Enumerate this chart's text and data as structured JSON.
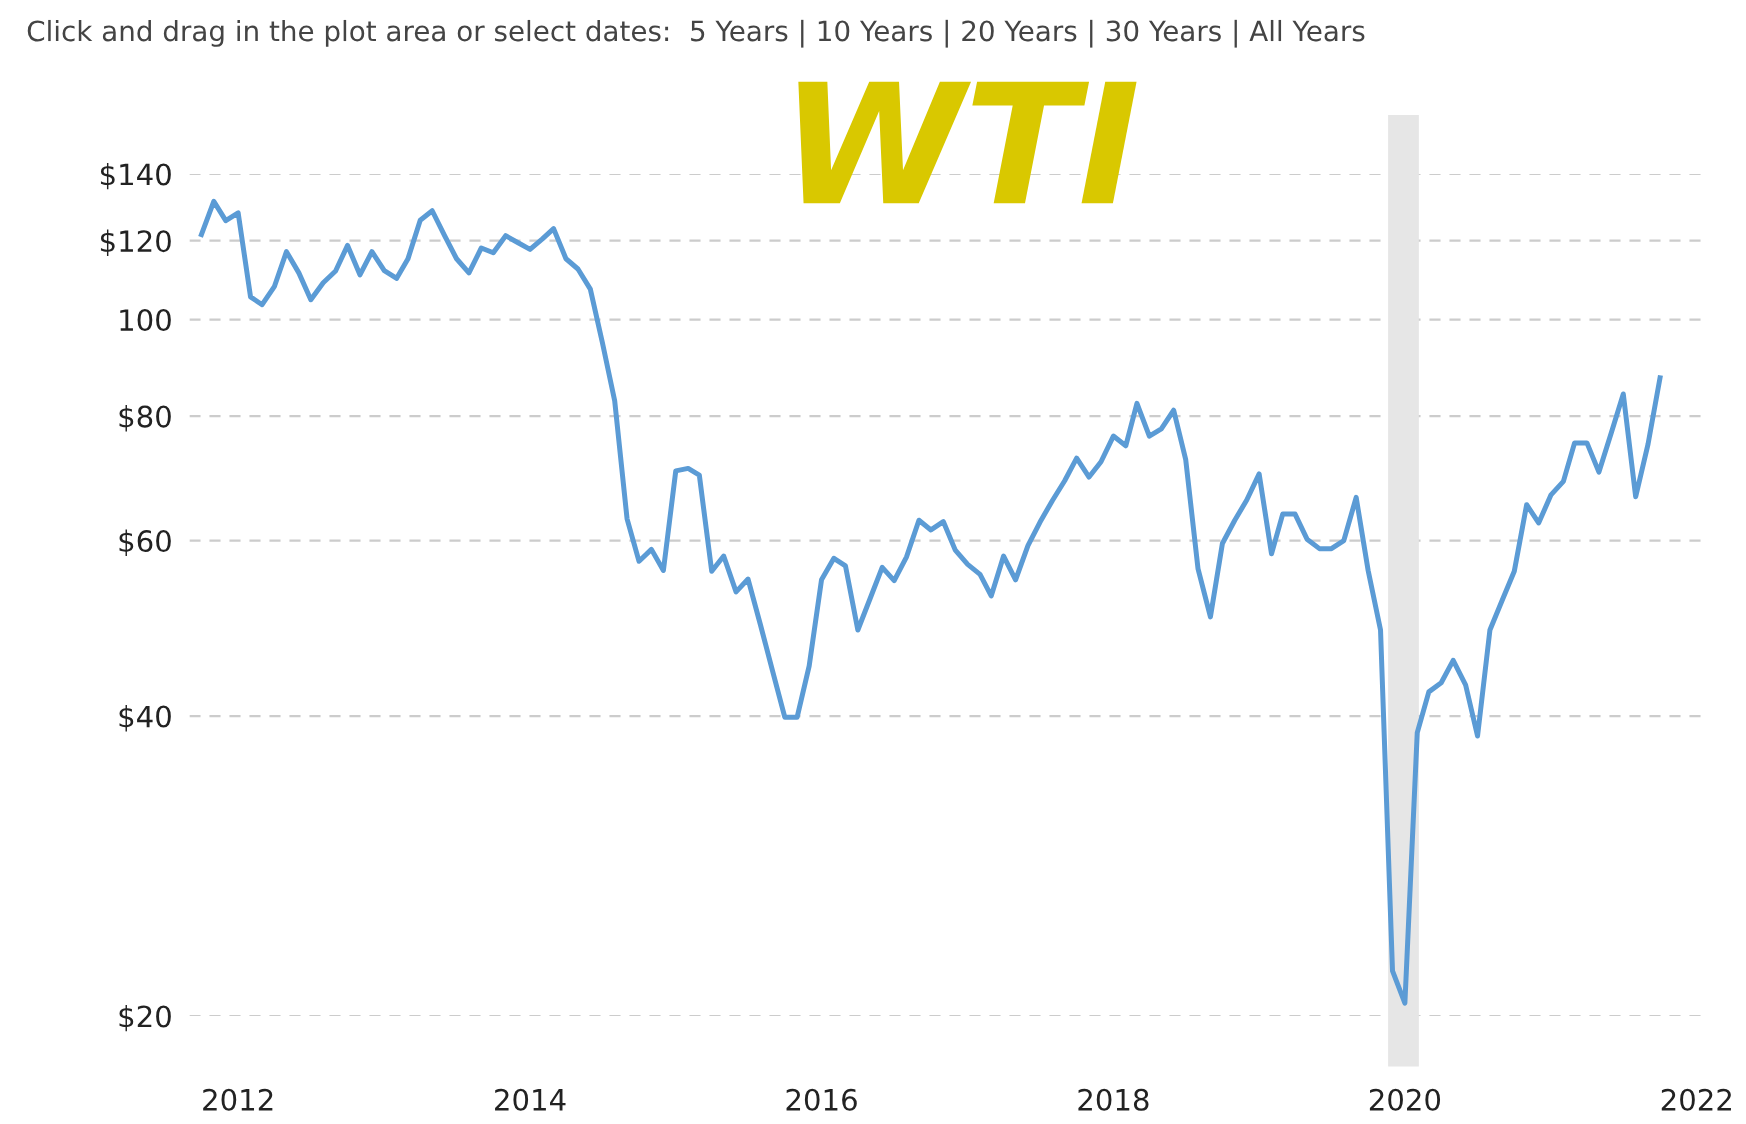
{
  "chart_data": {
    "type": "line",
    "annotations": [
      "Click and drag in the plot area or select dates:  5 Years | 10 Years | 20 Years | 30 Years | All Years",
      "WTI"
    ],
    "x": [
      "2011-10",
      "2011-11",
      "2011-12",
      "2012-01",
      "2012-02",
      "2012-03",
      "2012-04",
      "2012-05",
      "2012-06",
      "2012-07",
      "2012-08",
      "2012-09",
      "2012-10",
      "2012-11",
      "2012-12",
      "2013-01",
      "2013-02",
      "2013-03",
      "2013-04",
      "2013-05",
      "2013-06",
      "2013-07",
      "2013-08",
      "2013-09",
      "2013-10",
      "2013-11",
      "2013-12",
      "2014-01",
      "2014-02",
      "2014-03",
      "2014-04",
      "2014-05",
      "2014-06",
      "2014-07",
      "2014-08",
      "2014-09",
      "2014-10",
      "2014-11",
      "2014-12",
      "2015-01",
      "2015-02",
      "2015-03",
      "2015-04",
      "2015-05",
      "2015-06",
      "2015-07",
      "2015-08",
      "2015-09",
      "2015-10",
      "2015-11",
      "2015-12",
      "2016-01",
      "2016-02",
      "2016-03",
      "2016-04",
      "2016-05",
      "2016-06",
      "2016-07",
      "2016-08",
      "2016-09",
      "2016-10",
      "2016-11",
      "2016-12",
      "2017-01",
      "2017-02",
      "2017-03",
      "2017-04",
      "2017-05",
      "2017-06",
      "2017-07",
      "2017-08",
      "2017-09",
      "2017-10",
      "2017-11",
      "2017-12",
      "2018-01",
      "2018-02",
      "2018-03",
      "2018-04",
      "2018-05",
      "2018-06",
      "2018-07",
      "2018-08",
      "2018-09",
      "2018-10",
      "2018-11",
      "2018-12",
      "2019-01",
      "2019-02",
      "2019-03",
      "2019-04",
      "2019-05",
      "2019-06",
      "2019-07",
      "2019-08",
      "2019-09",
      "2019-10",
      "2019-11",
      "2019-12",
      "2020-01",
      "2020-02",
      "2020-03",
      "2020-04",
      "2020-05",
      "2020-06",
      "2020-07",
      "2020-08",
      "2020-09",
      "2020-10",
      "2020-11",
      "2020-12",
      "2021-01",
      "2021-02",
      "2021-03",
      "2021-04",
      "2021-05",
      "2021-06",
      "2021-07",
      "2021-08",
      "2021-09",
      "2021-10"
    ],
    "series": [
      {
        "color": "#5b9bd5",
        "values": [
          121.7,
          131.4,
          125.7,
          128,
          105.4,
          103.5,
          108,
          117,
          111.4,
          104.7,
          108.9,
          111.9,
          118.7,
          110.9,
          117,
          112,
          110,
          115,
          125.8,
          128.6,
          121.4,
          115.1,
          111.4,
          118,
          116.7,
          121.4,
          119.5,
          117.6,
          120.5,
          123.4,
          115.1,
          112.4,
          107.3,
          94.9,
          82.9,
          63.1,
          57.2,
          58.8,
          56,
          70.5,
          70.9,
          69.8,
          55.9,
          57.9,
          53.3,
          54.9,
          49.4,
          44.3,
          39.9,
          39.9,
          44.9,
          54.8,
          57.6,
          56.6,
          48.8,
          52.4,
          56.4,
          54.7,
          57.8,
          62.9,
          61.5,
          62.7,
          58.7,
          56.8,
          55.5,
          52.8,
          57.9,
          54.8,
          59.3,
          62.6,
          65.8,
          68.9,
          72.6,
          69.5,
          72,
          76.4,
          74.7,
          82.4,
          76.4,
          77.7,
          81.1,
          72.4,
          56.2,
          50.3,
          59.6,
          62.9,
          65.9,
          70,
          58.2,
          63.8,
          63.8,
          60.2,
          58.9,
          58.9,
          60,
          66.3,
          56,
          48.8,
          22.2,
          20.6,
          38.5,
          42.3,
          43.2,
          45.5,
          43,
          38.2,
          48.8,
          52.3,
          55.9,
          65.2,
          62.5,
          66.7,
          68.8,
          75.2,
          75.2,
          70.3,
          77,
          84.2,
          66.4,
          75,
          87.4
        ]
      }
    ],
    "bands": [
      {
        "axis": "x",
        "from": "2019-11-20",
        "to": "2020-02-05",
        "color": "#e6e6e6"
      }
    ],
    "log": true,
    "xlim": [
      "2011-09-01",
      "2022-01-15"
    ],
    "xticks": [
      {
        "value": "2012",
        "label": "2012"
      },
      {
        "value": "2014",
        "label": "2014"
      },
      {
        "value": "2016",
        "label": "2016"
      },
      {
        "value": "2018",
        "label": "2018"
      },
      {
        "value": "2020",
        "label": "2020"
      },
      {
        "value": "2022",
        "label": "2022"
      }
    ],
    "ylim": [
      20,
      140
    ],
    "yticks": [
      {
        "value": 20,
        "label": "$20"
      },
      {
        "value": 40,
        "label": "$40"
      },
      {
        "value": 60,
        "label": "$60"
      },
      {
        "value": 80,
        "label": "$80"
      },
      {
        "value": 100,
        "label": "100"
      },
      {
        "value": 120,
        "label": "$120"
      },
      {
        "value": 140,
        "label": "$140"
      }
    ],
    "grid": "y",
    "line_style": "solid",
    "marker": "none"
  }
}
